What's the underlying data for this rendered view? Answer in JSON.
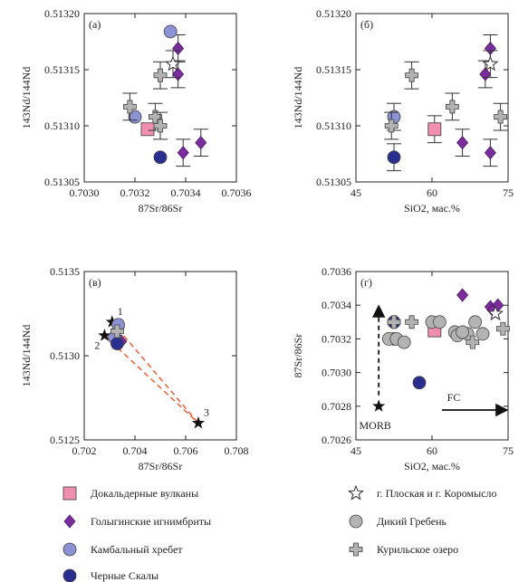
{
  "colors": {
    "dokaldernye": "#f28fb1",
    "golyginskie": "#7b2d9e",
    "kambalny": "#8b93d4",
    "chernye": "#2a2f8f",
    "ploskaya": "#ffffff",
    "dikiy": "#b3b3b3",
    "kurilskoe": "#b3b3b3",
    "err": "#333333",
    "mixing": "#e8562a",
    "star": "#111111"
  },
  "legend": {
    "items": [
      {
        "key": "dokaldernye",
        "label": "Докальдерные вулканы",
        "marker": "square"
      },
      {
        "key": "golyginskie",
        "label": "Голыгинские игнимбриты",
        "marker": "diamond"
      },
      {
        "key": "kambalny",
        "label": "Камбальный хребет",
        "marker": "circle"
      },
      {
        "key": "chernye",
        "label": "Черные Скалы",
        "marker": "circle"
      },
      {
        "key": "ploskaya",
        "label": "г. Плоская и г. Коромысло",
        "marker": "star"
      },
      {
        "key": "dikiy",
        "label": "Дикий Гребень",
        "marker": "circle"
      },
      {
        "key": "kurilskoe",
        "label": "Курильское озеро",
        "marker": "cross"
      }
    ]
  },
  "chart_data": [
    {
      "panel": "(а)",
      "type": "scatter",
      "xlabel": "87Sr/86Sr",
      "ylabel": "143Nd/144Nd",
      "xlim": [
        0.703,
        0.7036
      ],
      "ylim": [
        0.51305,
        0.5132
      ],
      "xticks": [
        "0.7030",
        "0.7032",
        "0.7034",
        "0.7036"
      ],
      "yticks": [
        "0.51305",
        "0.51310",
        "0.51315",
        "0.51320"
      ],
      "series": [
        {
          "key": "dokaldernye",
          "points": [
            {
              "x": 0.70325,
              "y": 0.513097,
              "ey": 0
            }
          ]
        },
        {
          "key": "golyginskie",
          "points": [
            {
              "x": 0.70337,
              "y": 0.513169,
              "ey": 1.2e-05
            },
            {
              "x": 0.70337,
              "y": 0.513146,
              "ey": 1.2e-05
            },
            {
              "x": 0.70339,
              "y": 0.513076,
              "ey": 1.2e-05
            },
            {
              "x": 0.70346,
              "y": 0.513085,
              "ey": 1.2e-05
            }
          ]
        },
        {
          "key": "kambalny",
          "points": [
            {
              "x": 0.70334,
              "y": 0.513184,
              "ey": 0
            },
            {
              "x": 0.7032,
              "y": 0.513108,
              "ey": 0
            }
          ]
        },
        {
          "key": "chernye",
          "points": [
            {
              "x": 0.7033,
              "y": 0.513072,
              "ey": 0
            }
          ]
        },
        {
          "key": "ploskaya",
          "points": [
            {
              "x": 0.70335,
              "y": 0.513155,
              "ey": 1.2e-05
            }
          ]
        },
        {
          "key": "kurilskoe",
          "points": [
            {
              "x": 0.70318,
              "y": 0.513117,
              "ey": 1.2e-05
            },
            {
              "x": 0.70328,
              "y": 0.513108,
              "ey": 1.2e-05
            },
            {
              "x": 0.7033,
              "y": 0.5131,
              "ey": 1.2e-05
            },
            {
              "x": 0.7033,
              "y": 0.513145,
              "ey": 1.2e-05
            }
          ]
        }
      ]
    },
    {
      "panel": "(б)",
      "type": "scatter",
      "xlabel": "SiO2, мас.%",
      "ylabel": "143Nd/144Nd",
      "xlim": [
        45,
        75
      ],
      "ylim": [
        0.51305,
        0.5132
      ],
      "xticks": [
        "45",
        "60",
        "75"
      ],
      "yticks": [
        "0.51305",
        "0.51310",
        "0.51315",
        "0.51320"
      ],
      "series": [
        {
          "key": "dokaldernye",
          "points": [
            {
              "x": 60.5,
              "y": 0.513097,
              "ey": 1.2e-05
            }
          ]
        },
        {
          "key": "golyginskie",
          "points": [
            {
              "x": 71.5,
              "y": 0.513169,
              "ey": 1.2e-05
            },
            {
              "x": 70.5,
              "y": 0.513146,
              "ey": 1.2e-05
            },
            {
              "x": 71.5,
              "y": 0.513076,
              "ey": 1.2e-05
            },
            {
              "x": 66.0,
              "y": 0.513085,
              "ey": 1.2e-05
            }
          ]
        },
        {
          "key": "kambalny",
          "points": [
            {
              "x": 52.5,
              "y": 0.513108,
              "ey": 1.2e-05
            }
          ]
        },
        {
          "key": "chernye",
          "points": [
            {
              "x": 52.5,
              "y": 0.513072,
              "ey": 1.2e-05
            }
          ]
        },
        {
          "key": "ploskaya",
          "points": [
            {
              "x": 71.5,
              "y": 0.513155,
              "ey": 1.2e-05
            }
          ]
        },
        {
          "key": "kurilskoe",
          "points": [
            {
              "x": 52.0,
              "y": 0.5131,
              "ey": 1.2e-05
            },
            {
              "x": 56.0,
              "y": 0.513145,
              "ey": 1.2e-05
            },
            {
              "x": 64.0,
              "y": 0.513117,
              "ey": 1.2e-05
            },
            {
              "x": 73.5,
              "y": 0.513108,
              "ey": 1.2e-05
            }
          ]
        }
      ]
    },
    {
      "panel": "(в)",
      "type": "scatter",
      "xlabel": "87Sr/86Sr",
      "ylabel": "143Nd/144Nd",
      "xlim": [
        0.702,
        0.708
      ],
      "ylim": [
        0.5125,
        0.5135
      ],
      "xticks": [
        "0.702",
        "0.704",
        "0.706",
        "0.708"
      ],
      "yticks": [
        "0.5125",
        "0.5130",
        "0.5135"
      ],
      "endmembers": [
        {
          "label": "1",
          "x": 0.7031,
          "y": 0.5132
        },
        {
          "label": "2",
          "x": 0.7028,
          "y": 0.51312
        },
        {
          "label": "3",
          "x": 0.7065,
          "y": 0.5126
        }
      ],
      "series": [
        {
          "key": "golyginskie",
          "points": [
            {
              "x": 0.70337,
              "y": 0.513169
            },
            {
              "x": 0.70346,
              "y": 0.513085
            }
          ]
        },
        {
          "key": "kambalny",
          "points": [
            {
              "x": 0.70334,
              "y": 0.513184
            },
            {
              "x": 0.7032,
              "y": 0.513108
            }
          ]
        },
        {
          "key": "chernye",
          "points": [
            {
              "x": 0.7033,
              "y": 0.513072
            }
          ]
        },
        {
          "key": "kurilskoe",
          "points": [
            {
              "x": 0.7033,
              "y": 0.513145
            }
          ]
        }
      ]
    },
    {
      "panel": "(г)",
      "type": "scatter",
      "xlabel": "SiO2, мас.%",
      "ylabel": "87Sr/86Sr",
      "xlim": [
        45,
        75
      ],
      "ylim": [
        0.7026,
        0.7036
      ],
      "xticks": [
        "45",
        "60",
        "75"
      ],
      "yticks": [
        "0.7026",
        "0.7028",
        "0.7030",
        "0.7032",
        "0.7034",
        "0.7036"
      ],
      "annotations": {
        "morb_label": "MORB",
        "fc_label": "FC",
        "morb": {
          "x": 49.5,
          "y": 0.7028
        }
      },
      "series": [
        {
          "key": "dokaldernye",
          "points": [
            {
              "x": 60.5,
              "y": 0.70325
            }
          ]
        },
        {
          "key": "golyginskie",
          "points": [
            {
              "x": 66.0,
              "y": 0.70346
            },
            {
              "x": 71.5,
              "y": 0.70339
            },
            {
              "x": 72.0,
              "y": 0.70337
            },
            {
              "x": 73.0,
              "y": 0.7034
            }
          ]
        },
        {
          "key": "kambalny",
          "points": [
            {
              "x": 52.5,
              "y": 0.7032
            }
          ]
        },
        {
          "key": "chernye",
          "points": [
            {
              "x": 52.5,
              "y": 0.7033
            },
            {
              "x": 57.5,
              "y": 0.70294
            }
          ]
        },
        {
          "key": "ploskaya",
          "points": [
            {
              "x": 72.5,
              "y": 0.70335
            }
          ]
        },
        {
          "key": "dikiy",
          "points": [
            {
              "x": 51.5,
              "y": 0.7032
            },
            {
              "x": 53.0,
              "y": 0.7032
            },
            {
              "x": 54.5,
              "y": 0.70318
            },
            {
              "x": 60.0,
              "y": 0.7033
            },
            {
              "x": 61.5,
              "y": 0.7033
            },
            {
              "x": 64.5,
              "y": 0.70324
            },
            {
              "x": 65.0,
              "y": 0.70322
            },
            {
              "x": 67.0,
              "y": 0.70323
            },
            {
              "x": 68.5,
              "y": 0.7033
            },
            {
              "x": 70.0,
              "y": 0.70323
            },
            {
              "x": 66.0,
              "y": 0.70324
            }
          ]
        },
        {
          "key": "kurilskoe",
          "points": [
            {
              "x": 52.5,
              "y": 0.7033
            },
            {
              "x": 56.0,
              "y": 0.7033
            },
            {
              "x": 68.0,
              "y": 0.70318
            },
            {
              "x": 74.0,
              "y": 0.70326
            }
          ]
        }
      ]
    }
  ]
}
